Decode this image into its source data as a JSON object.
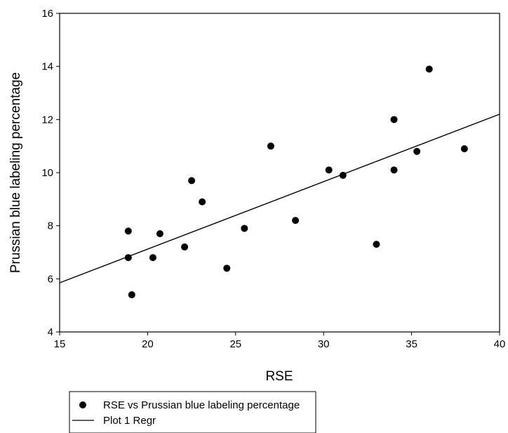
{
  "chart_data": {
    "type": "scatter",
    "xlabel": "RSE",
    "ylabel": "Prussian blue labeling percentage",
    "xlim": [
      15,
      40
    ],
    "ylim": [
      4,
      16
    ],
    "xticks": [
      15,
      20,
      25,
      30,
      35,
      40
    ],
    "yticks": [
      4,
      6,
      8,
      10,
      12,
      14,
      16
    ],
    "grid": false,
    "legend_position": "below",
    "series": [
      {
        "name": "RSE vs Prussian blue labeling percentage",
        "kind": "points",
        "x": [
          18.9,
          18.9,
          19.1,
          20.3,
          20.7,
          22.1,
          22.5,
          23.1,
          24.5,
          25.5,
          27.0,
          28.4,
          30.3,
          31.1,
          33.0,
          34.0,
          34.0,
          35.3,
          36.0,
          38.0
        ],
        "y": [
          7.8,
          6.8,
          5.4,
          6.8,
          7.7,
          7.2,
          9.7,
          8.9,
          6.4,
          7.9,
          11.0,
          8.2,
          10.1,
          9.9,
          7.3,
          12.0,
          10.1,
          10.8,
          13.9,
          10.9
        ]
      },
      {
        "name": "Plot 1 Regr",
        "kind": "line",
        "x": [
          15,
          40
        ],
        "y": [
          5.85,
          12.2
        ]
      }
    ]
  }
}
